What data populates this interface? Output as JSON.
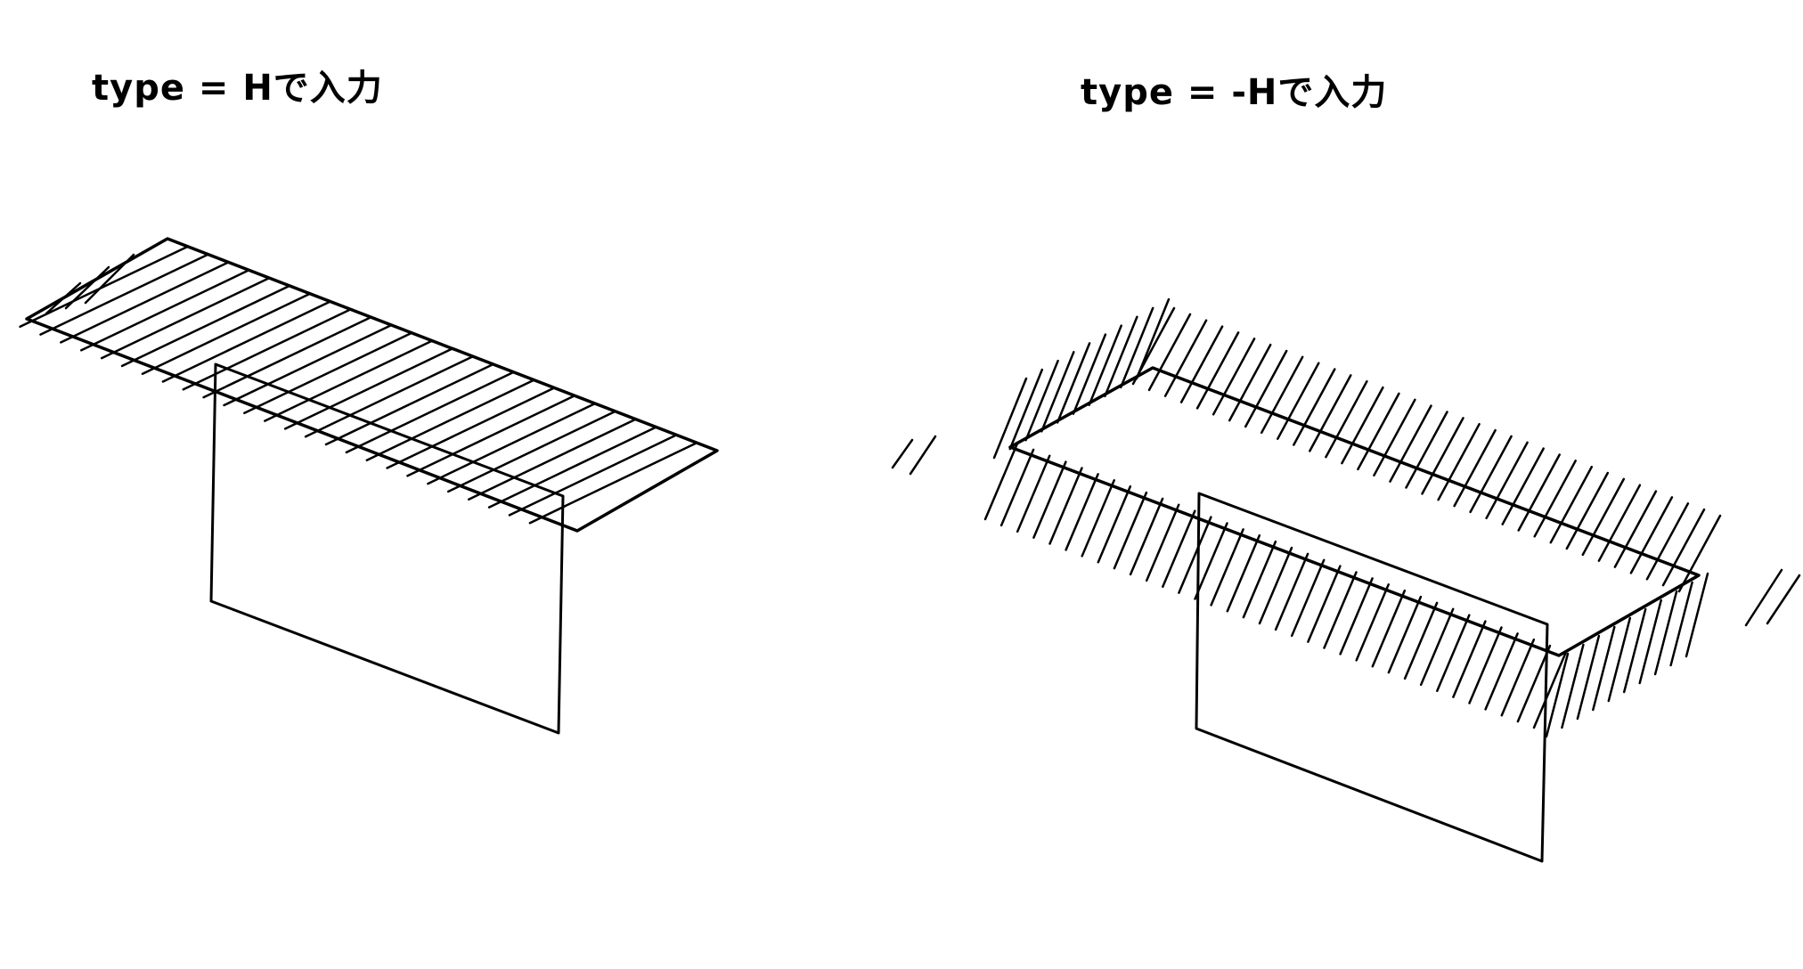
{
  "panels": [
    {
      "caption": "type = Hで入力"
    },
    {
      "caption": "type = -Hで入力"
    }
  ],
  "colors": {
    "line": "#000000",
    "background": "#ffffff"
  }
}
